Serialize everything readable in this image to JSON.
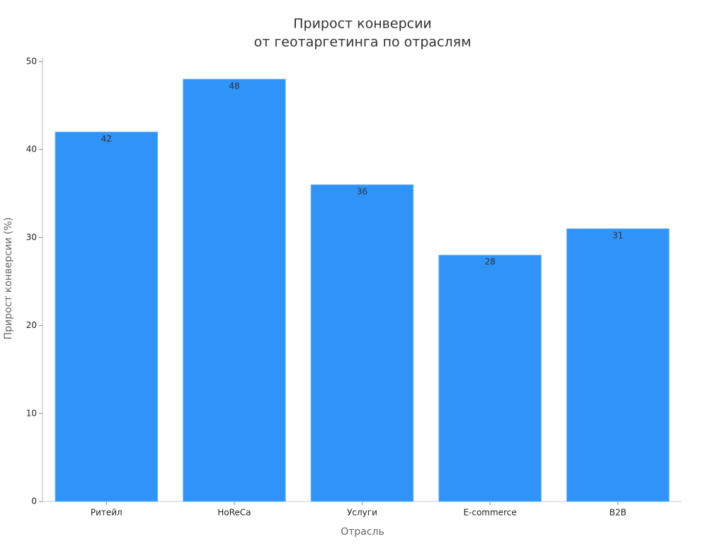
{
  "chart_data": {
    "type": "bar",
    "title": [
      "Прирост конверсии",
      "от геотаргетинга по отраслям"
    ],
    "x_label": "Отрасль",
    "y_label": "Прирост конверсии (%)",
    "categories": [
      "Ритейл",
      "HoReCa",
      "Услуги",
      "E-commerce",
      "B2B"
    ],
    "values": [
      42,
      48,
      36,
      28,
      31
    ],
    "color": "#2f93f8",
    "ylim": [
      0,
      50
    ],
    "yticks": [
      0,
      10,
      20,
      30,
      40,
      50
    ],
    "grid": false
  }
}
